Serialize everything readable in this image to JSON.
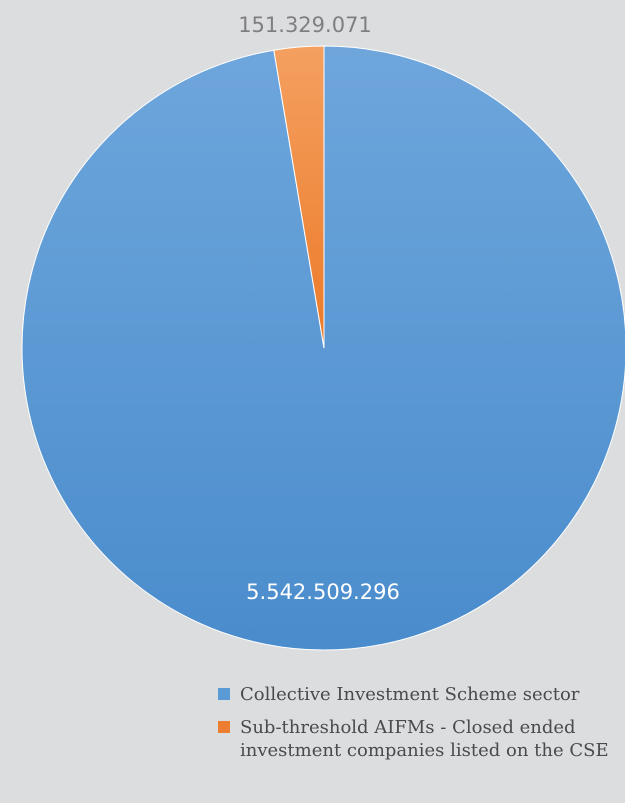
{
  "chart_data": {
    "type": "pie",
    "series": [
      {
        "name": "Collective Investment Scheme sector",
        "value": 5542509296,
        "label": "5.542.509.296",
        "color": "#5b9bd5"
      },
      {
        "name": "Sub-threshold AIFMs - Closed ended investment companies listed on the CSE",
        "value": 151329071,
        "label": "151.329.071",
        "color": "#ed7d31"
      }
    ],
    "legend_position": "bottom-right"
  }
}
